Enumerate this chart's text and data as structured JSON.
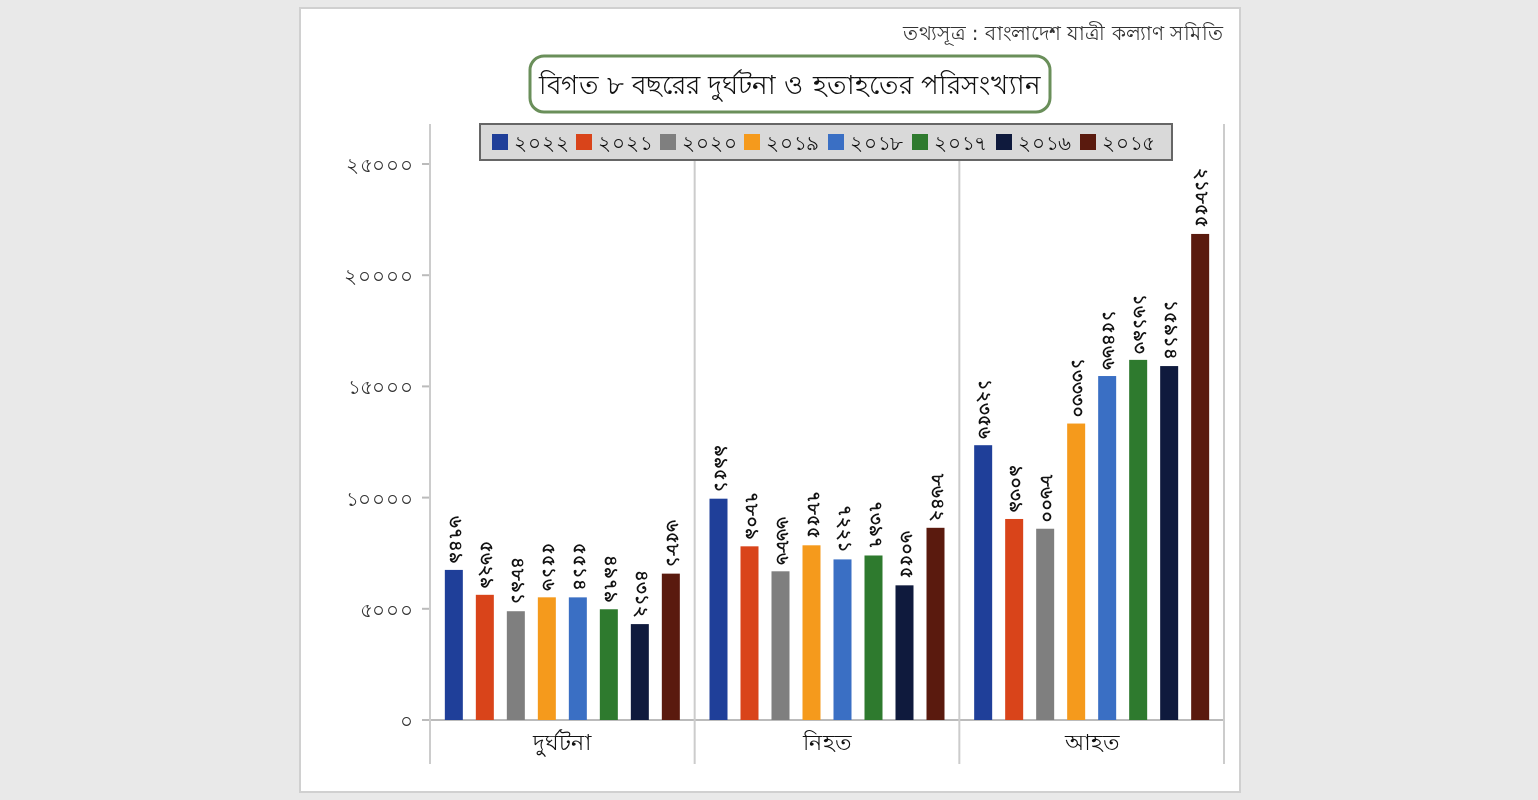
{
  "chart_data": {
    "type": "bar",
    "title": "বিগত ৮ বছরের দুর্ঘটনা ও হতাহতের পরিসংখ্যান",
    "annotations": [
      "তথ্যসূত্র : বাংলাদেশ যাত্রী কল্যাণ সমিতি"
    ],
    "categories": [
      "দুর্ঘটনা",
      "নিহত",
      "আহত"
    ],
    "series": [
      {
        "name": "২০২২",
        "color": "#1f3f99",
        "values": [
          6749,
          9951,
          12356
        ],
        "value_labels": [
          "৬৭৪৯",
          "৯৯৫১",
          "১২৩৫৬"
        ]
      },
      {
        "name": "২০২১",
        "color": "#d9441a",
        "values": [
          5629,
          7809,
          9039
        ],
        "value_labels": [
          "৫৬২৯",
          "৭৮০৯",
          "৯০৩৯"
        ]
      },
      {
        "name": "২০২০",
        "color": "#7f7f7f",
        "values": [
          4891,
          6686,
          8600
        ],
        "value_labels": [
          "৪৮৯১",
          "৬৬৮৬",
          "৮৬০০"
        ]
      },
      {
        "name": "২০১৯",
        "color": "#f59a1c",
        "values": [
          5516,
          7855,
          13330
        ],
        "value_labels": [
          "৫৫১৬",
          "৭৮৫৫",
          "১৩৩৩০"
        ]
      },
      {
        "name": "২০১৮",
        "color": "#3a6fc4",
        "values": [
          5514,
          7221,
          15466
        ],
        "value_labels": [
          "৫৫১৪",
          "৭২২১",
          "১৫৪৬৬"
        ]
      },
      {
        "name": "২০১৭",
        "color": "#2e7a2e",
        "values": [
          4979,
          7397,
          16193
        ],
        "value_labels": [
          "৪৯৭৯",
          "৭৩৯৭",
          "১৬১৯৩"
        ]
      },
      {
        "name": "২০১৬",
        "color": "#0f1a3d",
        "values": [
          4312,
          6055,
          15914
        ],
        "value_labels": [
          "৪৩১২",
          "৬০৫৫",
          "১৫৯১৪"
        ]
      },
      {
        "name": "২০১৫",
        "color": "#5a1a0e",
        "values": [
          6581,
          8642,
          21855
        ],
        "value_labels": [
          "৬৫৮১",
          "৮৬৪২",
          "২১৮৫৫"
        ]
      }
    ],
    "ylim": [
      0,
      25000
    ],
    "yticks": [
      {
        "value": 0,
        "label": "০"
      },
      {
        "value": 5000,
        "label": "৫০০০"
      },
      {
        "value": 10000,
        "label": "১০০০০"
      },
      {
        "value": 15000,
        "label": "১৫০০০"
      },
      {
        "value": 20000,
        "label": "২০০০০"
      },
      {
        "value": 25000,
        "label": "২৫০০০"
      }
    ],
    "legend": "top",
    "grid": false
  }
}
